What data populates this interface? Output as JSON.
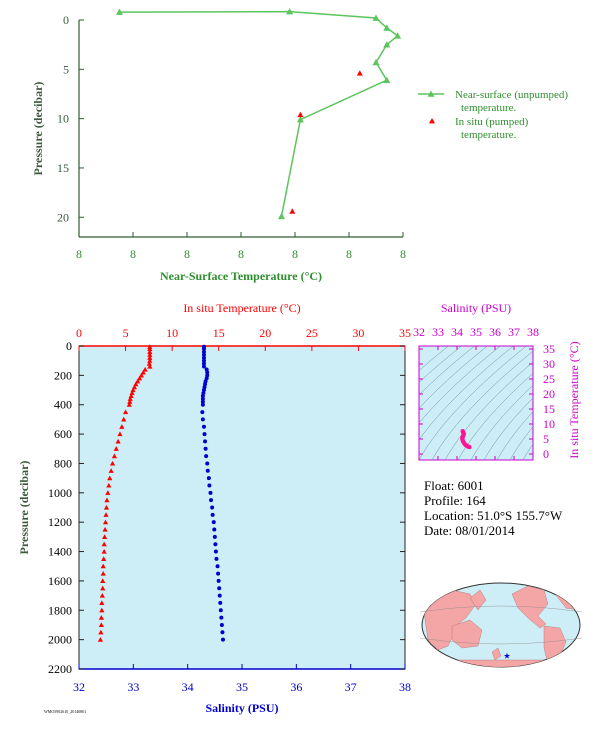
{
  "colors": {
    "near_surface": "#5cc45c",
    "near_surface_axis": "#2e5e2e",
    "in_situ_temp": "#ff0000",
    "salinity": "#0000cc",
    "ts_axis": "#cc00cc",
    "ts_points": "#ff1493",
    "panel_bg": "#cdeef6",
    "label_green": "#2f8f2f",
    "axis_dark_green": "#3b5a3b"
  },
  "footer_code": "WMO5902610_20140801",
  "float_info": {
    "float": "Float:  6001",
    "profile": "Profile:  164",
    "location": "Location:  51.0°S  155.7°W",
    "date": "Date:  08/01/2014"
  },
  "chart_data": [
    {
      "type": "line",
      "id": "near_surface",
      "xlabel": "Near-Surface Temperature (°C)",
      "ylabel": "Pressure (decibar)",
      "x_tick_labels": [
        "8",
        "8",
        "8",
        "8",
        "8",
        "8",
        "8"
      ],
      "x_range": [
        7.2,
        8.4
      ],
      "ylim": [
        0,
        22
      ],
      "y_ticks": [
        "0",
        "5",
        "10",
        "15",
        "20"
      ],
      "y_inverted": true,
      "legend": [
        "Near-surface (unpumped)",
        "temperature.",
        "In situ (pumped)",
        "temperature."
      ],
      "legend_position": "right",
      "series": [
        {
          "name": "Near-surface (unpumped) temperature.",
          "marker": "triangle",
          "points": [
            [
              7.35,
              -0.8
            ],
            [
              7.98,
              -0.85
            ],
            [
              8.3,
              -0.2
            ],
            [
              8.34,
              0.8
            ],
            [
              8.38,
              1.6
            ],
            [
              8.34,
              2.5
            ],
            [
              8.3,
              4.3
            ],
            [
              8.34,
              6.1
            ],
            [
              8.02,
              10.1
            ],
            [
              7.95,
              19.9
            ]
          ]
        },
        {
          "name": "In situ (pumped) temperature.",
          "marker": "triangle",
          "line": false,
          "points": [
            [
              8.24,
              5.4
            ],
            [
              8.02,
              9.6
            ],
            [
              7.99,
              19.4
            ]
          ]
        }
      ]
    },
    {
      "type": "line",
      "id": "profile",
      "top_xlabel": "In situ Temperature (°C)",
      "top_x_ticks": [
        0,
        5,
        10,
        15,
        20,
        25,
        30,
        35
      ],
      "top_xlim": [
        0,
        35
      ],
      "bottom_xlabel": "Salinity (PSU)",
      "bottom_x_ticks": [
        32,
        33,
        34,
        35,
        36,
        37,
        38
      ],
      "bottom_xlim": [
        32,
        38
      ],
      "ylabel": "Pressure (decibar)",
      "y_ticks": [
        0,
        200,
        400,
        600,
        800,
        1000,
        1200,
        1400,
        1600,
        1800,
        2000,
        2200
      ],
      "ylim": [
        0,
        2200
      ],
      "y_inverted": true,
      "series": [
        {
          "name": "In situ Temperature",
          "marker": "triangle",
          "axis": "top",
          "pressure": [
            5,
            20,
            40,
            60,
            80,
            100,
            120,
            140,
            160,
            180,
            200,
            220,
            240,
            260,
            280,
            300,
            320,
            340,
            360,
            380,
            400,
            450,
            500,
            550,
            600,
            650,
            700,
            750,
            800,
            850,
            900,
            950,
            1000,
            1050,
            1100,
            1150,
            1200,
            1250,
            1300,
            1350,
            1400,
            1450,
            1500,
            1550,
            1600,
            1650,
            1700,
            1750,
            1800,
            1850,
            1900,
            1950,
            2000
          ],
          "values": [
            7.6,
            7.6,
            7.6,
            7.6,
            7.6,
            7.6,
            7.55,
            7.6,
            7.1,
            6.9,
            6.7,
            6.5,
            6.3,
            6.1,
            5.95,
            5.8,
            5.7,
            5.6,
            5.5,
            5.45,
            5.4,
            5.0,
            4.8,
            4.6,
            4.4,
            4.2,
            4.0,
            3.8,
            3.6,
            3.45,
            3.3,
            3.2,
            3.1,
            3.0,
            2.95,
            2.9,
            2.85,
            2.8,
            2.75,
            2.7,
            2.7,
            2.65,
            2.6,
            2.6,
            2.55,
            2.55,
            2.5,
            2.45,
            2.45,
            2.4,
            2.4,
            2.35,
            2.3
          ]
        },
        {
          "name": "Salinity",
          "marker": "circle",
          "axis": "bottom",
          "pressure": [
            5,
            20,
            40,
            60,
            80,
            100,
            120,
            140,
            160,
            180,
            200,
            220,
            240,
            260,
            280,
            300,
            320,
            340,
            360,
            380,
            400,
            450,
            500,
            550,
            600,
            650,
            700,
            750,
            800,
            850,
            900,
            950,
            1000,
            1050,
            1100,
            1150,
            1200,
            1250,
            1300,
            1350,
            1400,
            1450,
            1500,
            1550,
            1600,
            1650,
            1700,
            1750,
            1800,
            1850,
            1900,
            1950,
            2000
          ],
          "values": [
            34.3,
            34.3,
            34.3,
            34.3,
            34.3,
            34.3,
            34.3,
            34.3,
            34.35,
            34.36,
            34.36,
            34.35,
            34.33,
            34.32,
            34.31,
            34.3,
            34.29,
            34.28,
            34.28,
            34.28,
            34.28,
            34.27,
            34.28,
            34.3,
            34.31,
            34.32,
            34.33,
            34.34,
            34.36,
            34.37,
            34.39,
            34.4,
            34.42,
            34.43,
            34.45,
            34.46,
            34.48,
            34.49,
            34.5,
            34.51,
            34.52,
            34.53,
            34.55,
            34.56,
            34.57,
            34.58,
            34.59,
            34.6,
            34.61,
            34.62,
            34.63,
            34.64,
            34.65
          ]
        }
      ]
    },
    {
      "type": "scatter",
      "id": "ts_diagram",
      "xlabel": "Salinity (PSU)",
      "x_ticks": [
        32,
        33,
        34,
        35,
        36,
        37,
        38
      ],
      "xlim": [
        32,
        38
      ],
      "ylabel": "In situ Temperature (°C)",
      "y_ticks": [
        0,
        5,
        10,
        15,
        20,
        25,
        30,
        35
      ],
      "ylim": [
        -2,
        36
      ],
      "series": [
        {
          "name": "T-S",
          "points": [
            [
              34.3,
              7.6
            ],
            [
              34.32,
              7.2
            ],
            [
              34.36,
              6.8
            ],
            [
              34.34,
              6.3
            ],
            [
              34.31,
              5.9
            ],
            [
              34.29,
              5.5
            ],
            [
              34.28,
              5.1
            ],
            [
              34.3,
              4.6
            ],
            [
              34.32,
              4.2
            ],
            [
              34.36,
              3.8
            ],
            [
              34.4,
              3.4
            ],
            [
              34.45,
              3.0
            ],
            [
              34.5,
              2.8
            ],
            [
              34.55,
              2.6
            ],
            [
              34.6,
              2.45
            ],
            [
              34.65,
              2.3
            ]
          ]
        }
      ]
    },
    {
      "type": "map",
      "id": "location_map",
      "marker_label": "float location"
    }
  ]
}
